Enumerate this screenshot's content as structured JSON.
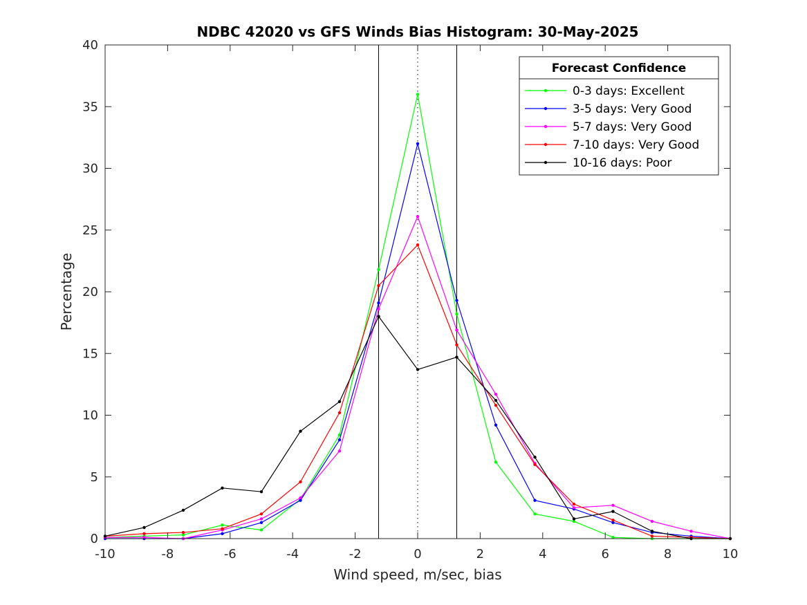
{
  "chart_data": {
    "type": "line",
    "title": "NDBC 42020 vs GFS Winds Bias Histogram: 30-May-2025",
    "xlabel": "Wind speed, m/sec, bias",
    "ylabel": "Percentage",
    "xlim": [
      -10,
      10
    ],
    "ylim": [
      0,
      40
    ],
    "xticks": [
      -10,
      -8,
      -6,
      -4,
      -2,
      0,
      2,
      4,
      6,
      8,
      10
    ],
    "yticks": [
      0,
      5,
      10,
      15,
      20,
      25,
      30,
      35,
      40
    ],
    "grid": false,
    "reference_lines": {
      "solid_x": [
        -1.25,
        1.25
      ],
      "dotted_x": [
        0
      ]
    },
    "legend": {
      "title": "Forecast Confidence",
      "placement": "top-right"
    },
    "x": [
      -10,
      -8.75,
      -7.5,
      -6.25,
      -5,
      -3.75,
      -2.5,
      -1.25,
      0,
      1.25,
      2.5,
      3.75,
      5,
      6.25,
      7.5,
      8.75,
      10
    ],
    "series": [
      {
        "name": "0-3 days: Excellent",
        "color": "#00ff00",
        "values": [
          0.1,
          0.2,
          0.3,
          1.1,
          0.7,
          3.2,
          8.4,
          21.8,
          36.0,
          18.2,
          6.2,
          2.0,
          1.4,
          0.1,
          0.0,
          0.0,
          0.0
        ]
      },
      {
        "name": "3-5 days: Very Good",
        "color": "#0000ff",
        "values": [
          0.0,
          0.0,
          0.0,
          0.4,
          1.3,
          3.1,
          8.0,
          19.1,
          32.0,
          19.3,
          9.2,
          3.1,
          2.4,
          1.3,
          0.5,
          0.2,
          0.0
        ]
      },
      {
        "name": "5-7 days: Very Good",
        "color": "#ff00ff",
        "values": [
          0.1,
          0.1,
          0.0,
          0.7,
          1.6,
          3.3,
          7.1,
          18.6,
          26.1,
          16.9,
          11.7,
          6.1,
          2.5,
          2.7,
          1.4,
          0.6,
          0.0
        ]
      },
      {
        "name": "7-10 days: Very Good",
        "color": "#ff0000",
        "values": [
          0.2,
          0.4,
          0.5,
          0.8,
          2.0,
          4.6,
          10.2,
          20.5,
          23.8,
          15.7,
          10.8,
          6.0,
          2.8,
          1.5,
          0.2,
          0.1,
          0.0
        ]
      },
      {
        "name": "10-16 days: Poor",
        "color": "#000000",
        "values": [
          0.2,
          0.9,
          2.3,
          4.1,
          3.8,
          8.7,
          11.1,
          18.0,
          13.7,
          14.7,
          11.2,
          6.6,
          1.6,
          2.2,
          0.6,
          0.0,
          0.0
        ]
      }
    ]
  }
}
